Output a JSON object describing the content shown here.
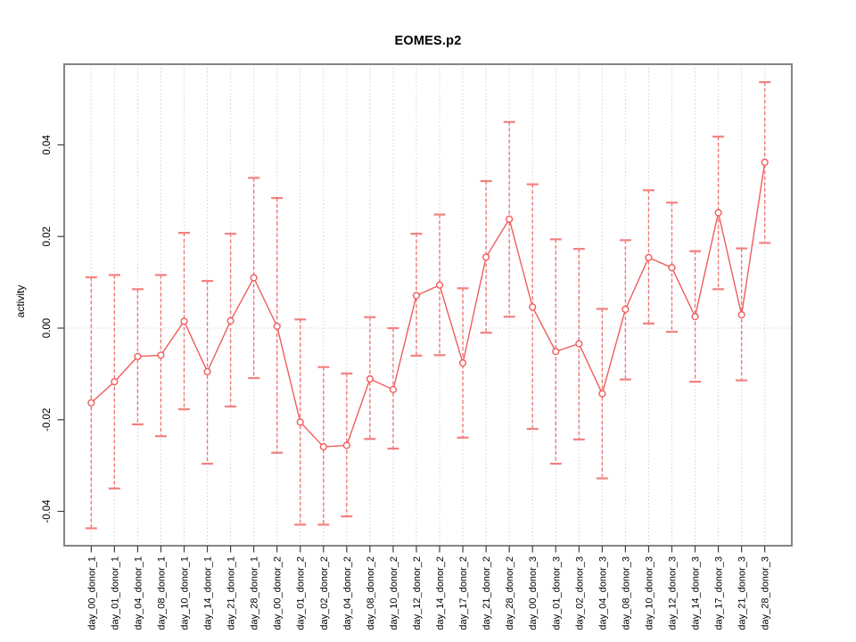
{
  "title": "EOMES.p2",
  "chart_data": {
    "type": "line",
    "title": "EOMES.p2",
    "xlabel": "",
    "ylabel": "activity",
    "ylim": [
      -0.0475,
      0.0576
    ],
    "yticks": [
      -0.04,
      -0.02,
      0,
      0.02,
      0.04
    ],
    "legend": "none",
    "grid": "dotted vertical line at every category; dotted horizontal line at y=0",
    "marker": "open-circle",
    "line_color": "#f05c5c",
    "error_bar_color": "#f06a6a",
    "error_cap_color": "#f28080",
    "grid_color": "#cbcbcb",
    "categories": [
      "day_00_donor_1",
      "day_01_donor_1",
      "day_04_donor_1",
      "day_08_donor_1",
      "day_10_donor_1",
      "day_14_donor_1",
      "day_21_donor_1",
      "day_28_donor_1",
      "day_00_donor_2",
      "day_01_donor_2",
      "day_02_donor_2",
      "day_04_donor_2",
      "day_08_donor_2",
      "day_10_donor_2",
      "day_12_donor_2",
      "day_14_donor_2",
      "day_17_donor_2",
      "day_21_donor_2",
      "day_28_donor_2",
      "day_00_donor_3",
      "day_01_donor_3",
      "day_02_donor_3",
      "day_04_donor_3",
      "day_08_donor_3",
      "day_10_donor_3",
      "day_12_donor_3",
      "day_14_donor_3",
      "day_17_donor_3",
      "day_21_donor_3",
      "day_28_donor_3"
    ],
    "values": [
      -0.0163,
      -0.0117,
      -0.0062,
      -0.0059,
      0.0015,
      -0.0095,
      0.0016,
      0.011,
      0.0004,
      -0.0205,
      -0.0259,
      -0.0256,
      -0.0111,
      -0.0134,
      0.0071,
      0.0094,
      -0.0076,
      0.0155,
      0.0238,
      0.0046,
      -0.0051,
      -0.0034,
      -0.0143,
      0.0041,
      0.0154,
      0.0132,
      0.0025,
      0.0252,
      0.0029,
      0.0362
    ],
    "error_low": [
      -0.0437,
      -0.035,
      -0.021,
      -0.0236,
      -0.0177,
      -0.0296,
      -0.0171,
      -0.0109,
      -0.0272,
      -0.0429,
      -0.0429,
      -0.0411,
      -0.0242,
      -0.0263,
      -0.006,
      -0.0059,
      -0.0239,
      -0.001,
      0.0025,
      -0.022,
      -0.0296,
      -0.0243,
      -0.0328,
      -0.0112,
      0.001,
      -0.0008,
      -0.0117,
      0.0085,
      -0.0114,
      0.0186
    ],
    "error_high": [
      0.0111,
      0.0116,
      0.0085,
      0.0116,
      0.0208,
      0.0103,
      0.0206,
      0.0328,
      0.0284,
      0.0019,
      -0.0085,
      -0.0099,
      0.0024,
      0.0,
      0.0206,
      0.0248,
      0.0087,
      0.0321,
      0.045,
      0.0314,
      0.0194,
      0.0173,
      0.0042,
      0.0192,
      0.0301,
      0.0274,
      0.0168,
      0.0418,
      0.0174,
      0.0537
    ]
  }
}
